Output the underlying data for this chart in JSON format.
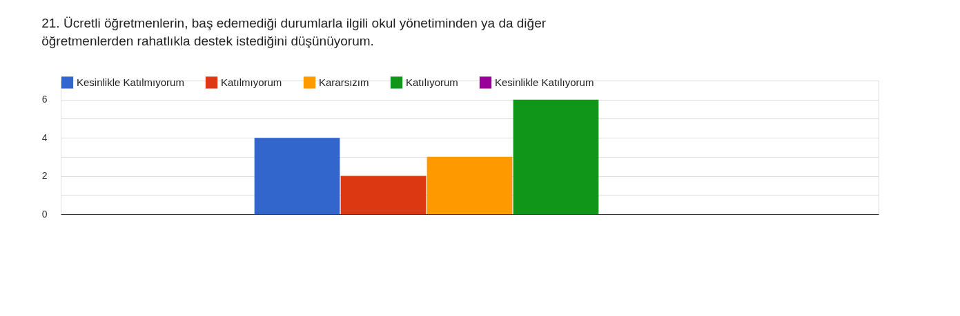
{
  "chart_data": {
    "type": "bar",
    "title": "21. Ücretli öğretmenlerin, baş edemediği durumlarla ilgili okul yönetiminden ya da diğer öğretmenlerden rahatlıkla destek istediğini düşünüyorum.",
    "categories": [
      null
    ],
    "series": [
      {
        "name": "Kesinlikle Katılmıyorum",
        "color": "#3366cc",
        "values": [
          4
        ]
      },
      {
        "name": "Katılmıyorum",
        "color": "#dc3912",
        "values": [
          2
        ]
      },
      {
        "name": "Kararsızım",
        "color": "#ff9900",
        "values": [
          3
        ]
      },
      {
        "name": "Katılıyorum",
        "color": "#109618",
        "values": [
          6
        ]
      },
      {
        "name": "Kesinlikle Katılıyorum",
        "color": "#990099",
        "values": [
          0
        ]
      }
    ],
    "ylim": [
      0,
      7
    ],
    "yticks": [
      0,
      {
        "value": 1,
        "label": null
      },
      2,
      {
        "value": 3,
        "label": null
      },
      4,
      {
        "value": 5,
        "label": null
      },
      6,
      {
        "value": 7,
        "label": null
      }
    ],
    "grid": true,
    "legend": "top"
  }
}
